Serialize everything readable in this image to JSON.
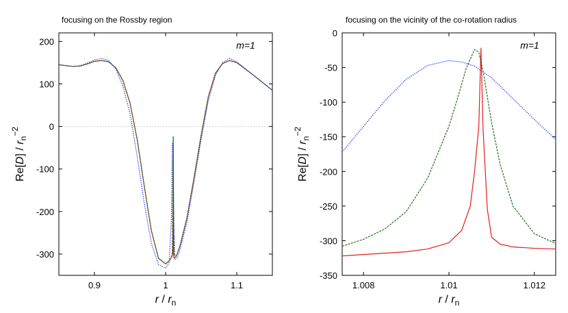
{
  "chart_data": [
    {
      "type": "line",
      "title": "focusing on the Rossby region",
      "annotation": "m=1",
      "xlabel_parts": [
        "r",
        " / ",
        "r",
        "n"
      ],
      "ylabel_parts": [
        "Re[",
        "D",
        "] / ",
        "r",
        "n",
        "−2"
      ],
      "xlim": [
        0.85,
        1.15
      ],
      "ylim": [
        -350,
        220
      ],
      "xticks": [
        0.9,
        1,
        1.1
      ],
      "xtick_labels": [
        "0.9",
        "1",
        "1.1"
      ],
      "yticks": [
        200,
        100,
        0,
        -100,
        -200,
        -300
      ],
      "ytick_labels": [
        "200",
        "100",
        "0",
        "-100",
        "-200",
        "-300"
      ],
      "zero_line": true,
      "series": [
        {
          "color": "#e41a1c",
          "dash": "solid",
          "x": [
            0.85,
            0.87,
            0.88,
            0.89,
            0.9,
            0.91,
            0.92,
            0.93,
            0.94,
            0.95,
            0.96,
            0.97,
            0.98,
            0.99,
            1.0,
            1.005,
            1.008,
            1.009,
            1.0095,
            1.01,
            1.0105,
            1.0107,
            1.011,
            1.012,
            1.015,
            1.02,
            1.03,
            1.04,
            1.05,
            1.06,
            1.07,
            1.08,
            1.09,
            1.1,
            1.12,
            1.15
          ],
          "y": [
            145,
            141,
            142,
            147,
            153,
            155,
            152,
            138,
            108,
            55,
            -30,
            -140,
            -245,
            -310,
            -323,
            -316,
            -308,
            -305,
            -300,
            -295,
            -230,
            -25,
            -305,
            -310,
            -305,
            -282,
            -215,
            -120,
            -20,
            70,
            125,
            148,
            155,
            150,
            125,
            85
          ]
        },
        {
          "color": "#1f6f1f",
          "dash": "dashed",
          "x": [
            0.85,
            0.87,
            0.88,
            0.89,
            0.9,
            0.91,
            0.92,
            0.93,
            0.94,
            0.95,
            0.96,
            0.97,
            0.98,
            0.99,
            1.0,
            1.005,
            1.008,
            1.009,
            1.0095,
            1.0102,
            1.0107,
            1.0112,
            1.012,
            1.015,
            1.02,
            1.03,
            1.04,
            1.05,
            1.06,
            1.07,
            1.08,
            1.09,
            1.1,
            1.12,
            1.15
          ],
          "y": [
            145,
            141,
            142,
            147,
            153,
            155,
            152,
            138,
            108,
            55,
            -30,
            -140,
            -245,
            -310,
            -323,
            -316,
            -308,
            -303,
            -290,
            -110,
            -24,
            -170,
            -300,
            -305,
            -282,
            -215,
            -120,
            -20,
            70,
            125,
            148,
            155,
            150,
            125,
            85
          ]
        },
        {
          "color": "#1f3fff",
          "dash": "dotted",
          "x": [
            0.85,
            0.87,
            0.88,
            0.89,
            0.9,
            0.91,
            0.92,
            0.93,
            0.94,
            0.95,
            0.96,
            0.97,
            0.98,
            0.99,
            1.0,
            1.005,
            1.008,
            1.0095,
            1.0105,
            1.0115,
            1.013,
            1.016,
            1.02,
            1.03,
            1.04,
            1.05,
            1.06,
            1.07,
            1.08,
            1.09,
            1.1,
            1.12,
            1.15
          ],
          "y": [
            145,
            141,
            143,
            149,
            156,
            160,
            155,
            135,
            95,
            30,
            -70,
            -180,
            -275,
            -325,
            -333,
            -320,
            -220,
            -40,
            -40,
            -230,
            -312,
            -310,
            -290,
            -225,
            -130,
            -30,
            60,
            120,
            150,
            160,
            152,
            125,
            85
          ]
        }
      ]
    },
    {
      "type": "line",
      "title": "focusing on the vicinity of the co-rotation radius",
      "annotation": "m=1",
      "xlabel_parts": [
        "r",
        " / ",
        "r",
        "n"
      ],
      "ylabel_parts": [
        "Re[",
        "D",
        "] / ",
        "r",
        "n",
        "−2"
      ],
      "xlim": [
        1.0075,
        1.0125
      ],
      "ylim": [
        -350,
        0
      ],
      "xticks": [
        1.008,
        1.01,
        1.012
      ],
      "xtick_labels": [
        "1.008",
        "1.01",
        "1.012"
      ],
      "yticks": [
        0,
        -50,
        -100,
        -150,
        -200,
        -250,
        -300,
        -350
      ],
      "ytick_labels": [
        "0",
        "-50",
        "-100",
        "-150",
        "-200",
        "-250",
        "-300",
        "-350"
      ],
      "zero_line": false,
      "series": [
        {
          "color": "#e41a1c",
          "dash": "solid",
          "x": [
            1.0075,
            1.008,
            1.0085,
            1.009,
            1.0095,
            1.01,
            1.0103,
            1.0105,
            1.0106,
            1.0107,
            1.01075,
            1.0108,
            1.0109,
            1.011,
            1.0112,
            1.0115,
            1.012,
            1.0125
          ],
          "y": [
            -322,
            -320,
            -318,
            -316,
            -312,
            -303,
            -285,
            -250,
            -200,
            -135,
            -22,
            -140,
            -255,
            -295,
            -305,
            -309,
            -311,
            -312
          ]
        },
        {
          "color": "#1f6f1f",
          "dash": "dashed",
          "x": [
            1.0075,
            1.008,
            1.0085,
            1.009,
            1.0095,
            1.01,
            1.0102,
            1.0104,
            1.0106,
            1.0107,
            1.0108,
            1.011,
            1.0112,
            1.0115,
            1.012,
            1.0125
          ],
          "y": [
            -308,
            -298,
            -283,
            -258,
            -210,
            -135,
            -95,
            -52,
            -24,
            -28,
            -55,
            -130,
            -190,
            -250,
            -290,
            -304
          ]
        },
        {
          "color": "#1f3fff",
          "dash": "dotted",
          "x": [
            1.0075,
            1.008,
            1.0085,
            1.009,
            1.0095,
            1.01,
            1.0103,
            1.0106,
            1.011,
            1.0115,
            1.012,
            1.0125
          ],
          "y": [
            -172,
            -135,
            -98,
            -67,
            -47,
            -40,
            -42,
            -48,
            -65,
            -95,
            -125,
            -154
          ]
        }
      ]
    }
  ]
}
